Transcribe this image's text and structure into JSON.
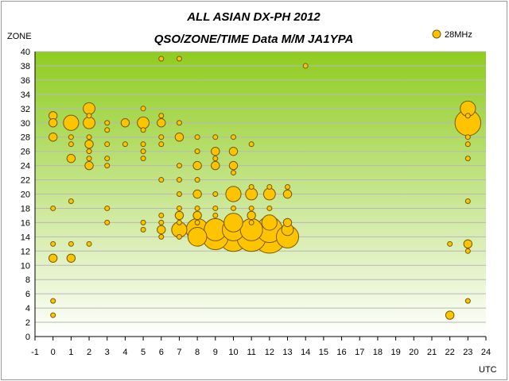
{
  "chart_data": {
    "type": "scatter",
    "title": "ALL ASIAN DX-PH 2012",
    "subtitle": "QSO/ZONE/TIME Data M/M JA1YPA",
    "xlabel": "UTC",
    "ylabel": "ZONE",
    "xlim": [
      -1,
      24
    ],
    "ylim": [
      0,
      40
    ],
    "xticks": [
      "-1",
      "0",
      "1",
      "2",
      "3",
      "4",
      "5",
      "6",
      "7",
      "8",
      "9",
      "10",
      "11",
      "12",
      "13",
      "14",
      "15",
      "16",
      "17",
      "18",
      "19",
      "20",
      "21",
      "22",
      "23",
      "24"
    ],
    "yticks": [
      "0",
      "2",
      "4",
      "6",
      "8",
      "10",
      "12",
      "14",
      "16",
      "18",
      "20",
      "22",
      "24",
      "26",
      "28",
      "30",
      "32",
      "34",
      "36",
      "38",
      "40"
    ],
    "grid": true,
    "legend": "top-right",
    "plot_background": [
      "#8fcc1f",
      "#ffffff"
    ],
    "marker_fill": "#ffc400",
    "marker_edge": "#7a5a00",
    "series": [
      {
        "name": "28MHz",
        "points": [
          {
            "x": 0,
            "y": 31,
            "size": 2
          },
          {
            "x": 0,
            "y": 30,
            "size": 2
          },
          {
            "x": 0,
            "y": 28,
            "size": 2
          },
          {
            "x": 0,
            "y": 18,
            "size": 1
          },
          {
            "x": 0,
            "y": 13,
            "size": 1
          },
          {
            "x": 0,
            "y": 11,
            "size": 2
          },
          {
            "x": 0,
            "y": 5,
            "size": 1
          },
          {
            "x": 0,
            "y": 3,
            "size": 1
          },
          {
            "x": 1,
            "y": 30,
            "size": 4
          },
          {
            "x": 1,
            "y": 28,
            "size": 1
          },
          {
            "x": 1,
            "y": 27,
            "size": 1
          },
          {
            "x": 1,
            "y": 25,
            "size": 2
          },
          {
            "x": 1,
            "y": 19,
            "size": 1
          },
          {
            "x": 1,
            "y": 13,
            "size": 1
          },
          {
            "x": 1,
            "y": 11,
            "size": 2
          },
          {
            "x": 2,
            "y": 32,
            "size": 3
          },
          {
            "x": 2,
            "y": 31,
            "size": 1
          },
          {
            "x": 2,
            "y": 30,
            "size": 3
          },
          {
            "x": 2,
            "y": 28,
            "size": 1
          },
          {
            "x": 2,
            "y": 27,
            "size": 2
          },
          {
            "x": 2,
            "y": 26,
            "size": 1
          },
          {
            "x": 2,
            "y": 25,
            "size": 1
          },
          {
            "x": 2,
            "y": 24,
            "size": 2
          },
          {
            "x": 2,
            "y": 13,
            "size": 1
          },
          {
            "x": 3,
            "y": 30,
            "size": 1
          },
          {
            "x": 3,
            "y": 29,
            "size": 1
          },
          {
            "x": 3,
            "y": 27,
            "size": 1
          },
          {
            "x": 3,
            "y": 25,
            "size": 1
          },
          {
            "x": 3,
            "y": 24,
            "size": 1
          },
          {
            "x": 3,
            "y": 18,
            "size": 1
          },
          {
            "x": 3,
            "y": 16,
            "size": 1
          },
          {
            "x": 4,
            "y": 30,
            "size": 2
          },
          {
            "x": 4,
            "y": 27,
            "size": 1
          },
          {
            "x": 5,
            "y": 32,
            "size": 1
          },
          {
            "x": 5,
            "y": 30,
            "size": 3
          },
          {
            "x": 5,
            "y": 29,
            "size": 1
          },
          {
            "x": 5,
            "y": 27,
            "size": 1
          },
          {
            "x": 5,
            "y": 26,
            "size": 1
          },
          {
            "x": 5,
            "y": 25,
            "size": 1
          },
          {
            "x": 5,
            "y": 16,
            "size": 1
          },
          {
            "x": 5,
            "y": 15,
            "size": 1
          },
          {
            "x": 6,
            "y": 39,
            "size": 1
          },
          {
            "x": 6,
            "y": 31,
            "size": 1
          },
          {
            "x": 6,
            "y": 30,
            "size": 2
          },
          {
            "x": 6,
            "y": 28,
            "size": 1
          },
          {
            "x": 6,
            "y": 27,
            "size": 1
          },
          {
            "x": 6,
            "y": 22,
            "size": 1
          },
          {
            "x": 6,
            "y": 17,
            "size": 1
          },
          {
            "x": 6,
            "y": 16,
            "size": 1
          },
          {
            "x": 6,
            "y": 15,
            "size": 2
          },
          {
            "x": 6,
            "y": 14,
            "size": 1
          },
          {
            "x": 7,
            "y": 39,
            "size": 1
          },
          {
            "x": 7,
            "y": 30,
            "size": 1
          },
          {
            "x": 7,
            "y": 28,
            "size": 2
          },
          {
            "x": 7,
            "y": 24,
            "size": 1
          },
          {
            "x": 7,
            "y": 22,
            "size": 1
          },
          {
            "x": 7,
            "y": 20,
            "size": 1
          },
          {
            "x": 7,
            "y": 18,
            "size": 1
          },
          {
            "x": 7,
            "y": 17,
            "size": 2
          },
          {
            "x": 7,
            "y": 16,
            "size": 1
          },
          {
            "x": 7,
            "y": 15,
            "size": 4
          },
          {
            "x": 7,
            "y": 14,
            "size": 1
          },
          {
            "x": 8,
            "y": 28,
            "size": 1
          },
          {
            "x": 8,
            "y": 26,
            "size": 1
          },
          {
            "x": 8,
            "y": 24,
            "size": 2
          },
          {
            "x": 8,
            "y": 22,
            "size": 1
          },
          {
            "x": 8,
            "y": 20,
            "size": 2
          },
          {
            "x": 8,
            "y": 18,
            "size": 1
          },
          {
            "x": 8,
            "y": 17,
            "size": 2
          },
          {
            "x": 8,
            "y": 16,
            "size": 1
          },
          {
            "x": 8,
            "y": 15,
            "size": 6
          },
          {
            "x": 8,
            "y": 14,
            "size": 5
          },
          {
            "x": 9,
            "y": 28,
            "size": 1
          },
          {
            "x": 9,
            "y": 26,
            "size": 2
          },
          {
            "x": 9,
            "y": 25,
            "size": 1
          },
          {
            "x": 9,
            "y": 24,
            "size": 2
          },
          {
            "x": 9,
            "y": 20,
            "size": 1
          },
          {
            "x": 9,
            "y": 18,
            "size": 1
          },
          {
            "x": 9,
            "y": 17,
            "size": 1
          },
          {
            "x": 9,
            "y": 15,
            "size": 6
          },
          {
            "x": 9,
            "y": 14,
            "size": 7
          },
          {
            "x": 10,
            "y": 28,
            "size": 1
          },
          {
            "x": 10,
            "y": 26,
            "size": 2
          },
          {
            "x": 10,
            "y": 24,
            "size": 2
          },
          {
            "x": 10,
            "y": 23,
            "size": 1
          },
          {
            "x": 10,
            "y": 20,
            "size": 4
          },
          {
            "x": 10,
            "y": 18,
            "size": 1
          },
          {
            "x": 10,
            "y": 16,
            "size": 5
          },
          {
            "x": 10,
            "y": 15,
            "size": 6
          },
          {
            "x": 10,
            "y": 14,
            "size": 8
          },
          {
            "x": 11,
            "y": 27,
            "size": 1
          },
          {
            "x": 11,
            "y": 21,
            "size": 1
          },
          {
            "x": 11,
            "y": 20,
            "size": 3
          },
          {
            "x": 11,
            "y": 18,
            "size": 1
          },
          {
            "x": 11,
            "y": 17,
            "size": 2
          },
          {
            "x": 11,
            "y": 16,
            "size": 1
          },
          {
            "x": 11,
            "y": 15,
            "size": 6
          },
          {
            "x": 11,
            "y": 14,
            "size": 8
          },
          {
            "x": 12,
            "y": 21,
            "size": 1
          },
          {
            "x": 12,
            "y": 20,
            "size": 3
          },
          {
            "x": 12,
            "y": 18,
            "size": 1
          },
          {
            "x": 12,
            "y": 16,
            "size": 4
          },
          {
            "x": 12,
            "y": 15,
            "size": 7
          },
          {
            "x": 12,
            "y": 14,
            "size": 9
          },
          {
            "x": 13,
            "y": 21,
            "size": 1
          },
          {
            "x": 13,
            "y": 20,
            "size": 2
          },
          {
            "x": 13,
            "y": 16,
            "size": 2
          },
          {
            "x": 13,
            "y": 15,
            "size": 3
          },
          {
            "x": 13,
            "y": 14,
            "size": 6
          },
          {
            "x": 14,
            "y": 38,
            "size": 1
          },
          {
            "x": 22,
            "y": 13,
            "size": 1
          },
          {
            "x": 22,
            "y": 3,
            "size": 2
          },
          {
            "x": 23,
            "y": 32,
            "size": 4
          },
          {
            "x": 23,
            "y": 31,
            "size": 1
          },
          {
            "x": 23,
            "y": 30,
            "size": 7
          },
          {
            "x": 23,
            "y": 28,
            "size": 1
          },
          {
            "x": 23,
            "y": 27,
            "size": 1
          },
          {
            "x": 23,
            "y": 25,
            "size": 1
          },
          {
            "x": 23,
            "y": 19,
            "size": 1
          },
          {
            "x": 23,
            "y": 13,
            "size": 2
          },
          {
            "x": 23,
            "y": 12,
            "size": 1
          },
          {
            "x": 23,
            "y": 5,
            "size": 1
          }
        ]
      }
    ]
  }
}
